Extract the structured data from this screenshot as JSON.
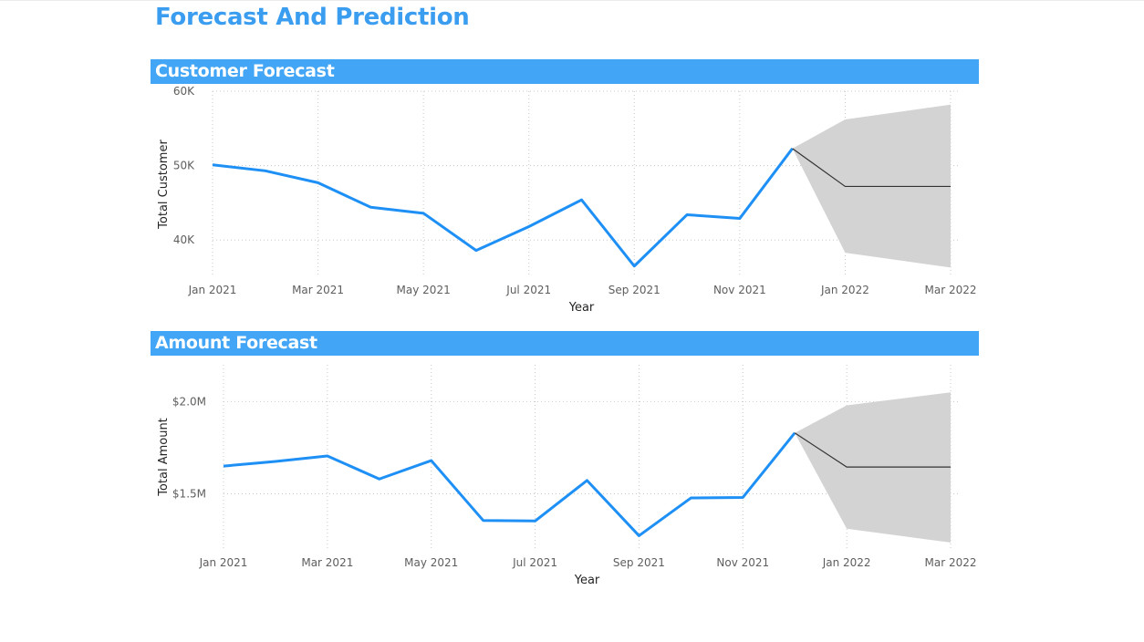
{
  "page": {
    "title": "Forecast And Prediction"
  },
  "colors": {
    "accent": "#42a5f5",
    "title": "#3a9df0",
    "actual_line": "#1e90f5",
    "forecast_line": "#333333",
    "confidence_band": "#d3d3d3"
  },
  "chart_data": [
    {
      "type": "line",
      "title": "Customer Forecast",
      "xlabel": "Year",
      "ylabel": "Total Customer",
      "x_ticks": [
        "Jan 2021",
        "Mar 2021",
        "May 2021",
        "Jul 2021",
        "Sep 2021",
        "Nov 2021",
        "Jan 2022",
        "Mar 2022"
      ],
      "y_ticks": [
        {
          "value": 60000,
          "label": "60K"
        },
        {
          "value": 50000,
          "label": "50K"
        },
        {
          "value": 40000,
          "label": "40K"
        }
      ],
      "ylim": [
        35000,
        60000
      ],
      "grid": true,
      "series": [
        {
          "kind": "actual",
          "x": [
            "2021-01",
            "2021-02",
            "2021-03",
            "2021-04",
            "2021-05",
            "2021-06",
            "2021-07",
            "2021-08",
            "2021-09",
            "2021-10",
            "2021-11",
            "2021-12"
          ],
          "values": [
            50100,
            49300,
            47700,
            44400,
            43600,
            38600,
            41800,
            45400,
            36500,
            43400,
            42900,
            52300
          ]
        },
        {
          "kind": "forecast",
          "x": [
            "2021-12",
            "2022-01",
            "2022-03"
          ],
          "values": [
            52300,
            47200,
            47200
          ],
          "upper": [
            52300,
            56200,
            58200
          ],
          "lower": [
            52300,
            38300,
            36300
          ]
        }
      ]
    },
    {
      "type": "line",
      "title": "Amount Forecast",
      "xlabel": "Year",
      "ylabel": "Total Amount",
      "x_ticks": [
        "Jan 2021",
        "Mar 2021",
        "May 2021",
        "Jul 2021",
        "Sep 2021",
        "Nov 2021",
        "Jan 2022",
        "Mar 2022"
      ],
      "y_ticks": [
        {
          "value": 2000000,
          "label": "$2.0M"
        },
        {
          "value": 1500000,
          "label": "$1.5M"
        }
      ],
      "ylim": [
        1200000,
        2200000
      ],
      "grid": true,
      "series": [
        {
          "kind": "actual",
          "x": [
            "2021-01",
            "2021-02",
            "2021-03",
            "2021-04",
            "2021-05",
            "2021-06",
            "2021-07",
            "2021-08",
            "2021-09",
            "2021-10",
            "2021-11",
            "2021-12"
          ],
          "values": [
            1650000,
            1675000,
            1705000,
            1580000,
            1680000,
            1355000,
            1352000,
            1572000,
            1272000,
            1477000,
            1480000,
            1830000
          ]
        },
        {
          "kind": "forecast",
          "x": [
            "2021-12",
            "2022-01",
            "2022-03"
          ],
          "values": [
            1830000,
            1645000,
            1645000
          ],
          "upper": [
            1830000,
            1980000,
            2050000
          ],
          "lower": [
            1830000,
            1310000,
            1235000
          ]
        }
      ]
    }
  ]
}
